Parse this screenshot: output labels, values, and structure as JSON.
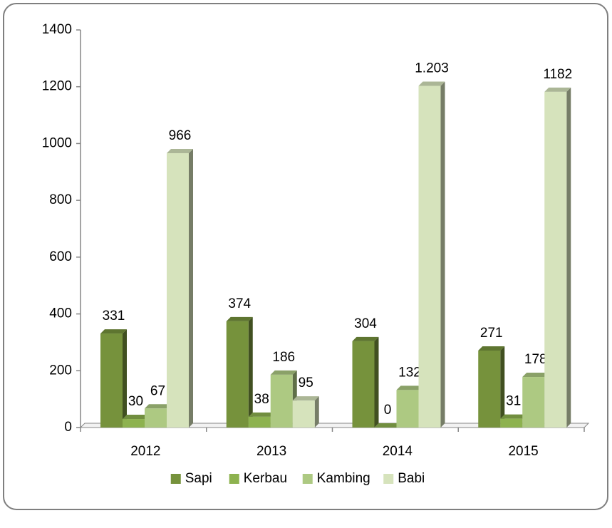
{
  "chart_data": {
    "type": "bar",
    "categories": [
      "2012",
      "2013",
      "2014",
      "2015"
    ],
    "series": [
      {
        "name": "Sapi",
        "color": "#76923c",
        "values": [
          331,
          374,
          304,
          271
        ]
      },
      {
        "name": "Kerbau",
        "color": "#8db24f",
        "values": [
          30,
          38,
          0,
          31
        ]
      },
      {
        "name": "Kambing",
        "color": "#adc982",
        "values": [
          67,
          186,
          132,
          178
        ]
      },
      {
        "name": "Babi",
        "color": "#d6e3bc",
        "values": [
          966,
          95,
          1203,
          1182
        ],
        "value_labels": [
          "966",
          "95",
          "1.203",
          "1182"
        ]
      }
    ],
    "ylim": [
      0,
      1400
    ],
    "yticks": [
      0,
      200,
      400,
      600,
      800,
      1000,
      1200,
      1400
    ],
    "legend": "bottom"
  }
}
